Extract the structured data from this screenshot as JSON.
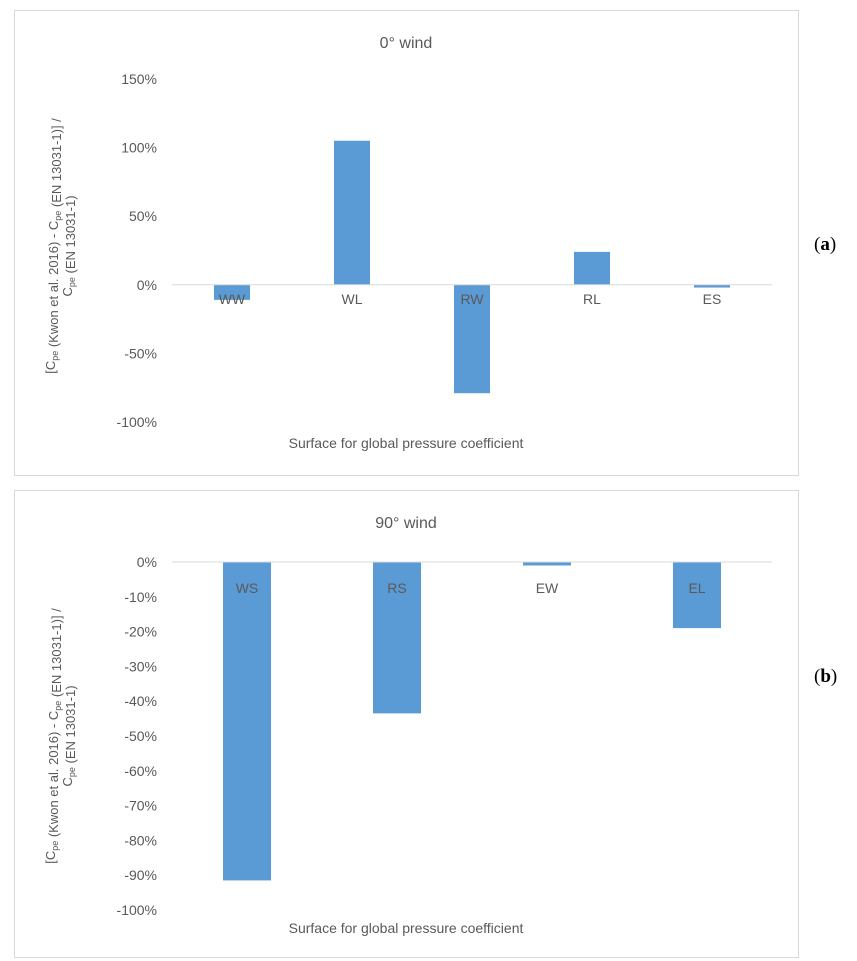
{
  "chart_data": [
    {
      "type": "bar",
      "panel": "a",
      "title": "0° wind",
      "categories": [
        "WW",
        "WL",
        "RW",
        "RL",
        "ES"
      ],
      "values": [
        -11,
        105,
        -79,
        24,
        -2
      ],
      "ylim": [
        -100,
        150
      ],
      "yticks": [
        -100,
        -50,
        0,
        50,
        100,
        150
      ],
      "ytick_labels": [
        "-100%",
        "-50%",
        "0%",
        "50%",
        "100%",
        "150%"
      ],
      "xlabel": "Surface for global pressure coefficient",
      "ylabel": {
        "line1_parts": [
          "[C",
          "pe",
          " (Kwon et al. 2016) - C",
          "pe",
          " (EN 13031-1)] /"
        ],
        "line2_parts": [
          "C",
          "pe",
          " (EN 13031-1)"
        ]
      },
      "bar_color": "#5b9bd5",
      "grid": false,
      "legend": "none"
    },
    {
      "type": "bar",
      "panel": "b",
      "title": "90° wind",
      "categories": [
        "WS",
        "RS",
        "EW",
        "EL"
      ],
      "values": [
        -91.5,
        -43.5,
        -1,
        -19
      ],
      "ylim": [
        -100,
        0
      ],
      "yticks": [
        -100,
        -90,
        -80,
        -70,
        -60,
        -50,
        -40,
        -30,
        -20,
        -10,
        0
      ],
      "ytick_labels": [
        "-100%",
        "-90%",
        "-80%",
        "-70%",
        "-60%",
        "-50%",
        "-40%",
        "-30%",
        "-20%",
        "-10%",
        "0%"
      ],
      "xlabel": "Surface for global pressure coefficient",
      "ylabel": {
        "line1_parts": [
          "[C",
          "pe",
          " (Kwon et al. 2016) - C",
          "pe",
          " (EN 13031-1)] /"
        ],
        "line2_parts": [
          "C",
          "pe",
          " (EN 13031-1)"
        ]
      },
      "bar_color": "#5b9bd5",
      "grid": false,
      "legend": "none"
    }
  ],
  "panel_tags": {
    "a": {
      "open": "(",
      "letter": "a",
      "close": ")"
    },
    "b": {
      "open": "(",
      "letter": "b",
      "close": ")"
    }
  }
}
